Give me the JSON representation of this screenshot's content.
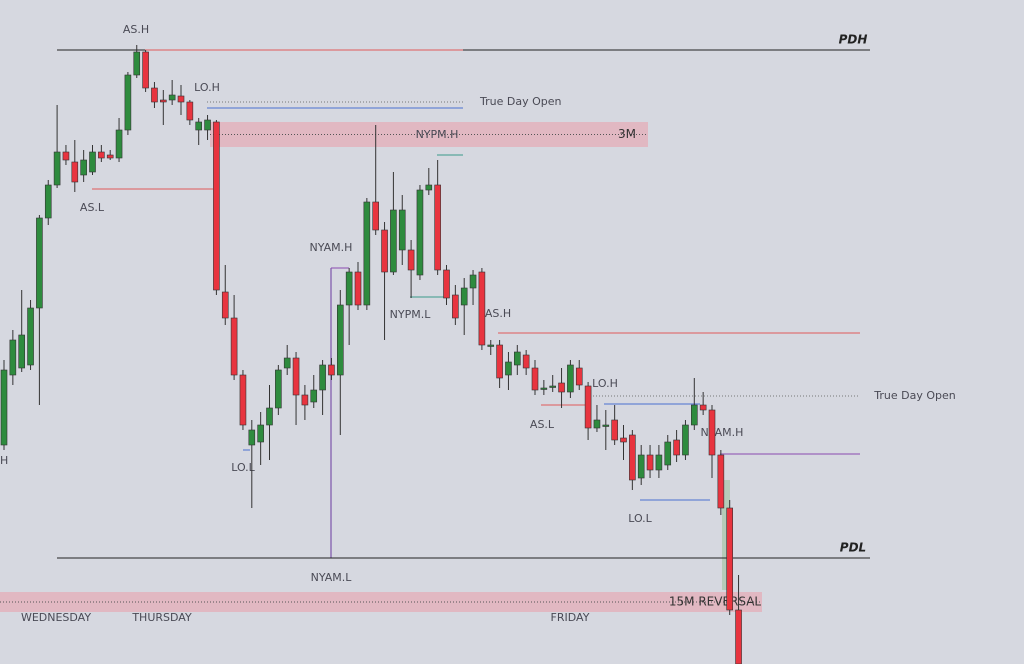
{
  "chart_data": {
    "type": "candlestick",
    "ylim": [
      0,
      664
    ],
    "up_color": "#2e8b3e",
    "down_color": "#e8343f",
    "ohlc": [
      [
        219,
        304,
        214,
        294
      ],
      [
        289,
        334,
        279,
        324
      ],
      [
        296,
        374,
        292,
        329
      ],
      [
        299,
        364,
        294,
        356
      ],
      [
        356,
        449,
        259,
        446
      ],
      [
        446,
        484,
        439,
        479
      ],
      [
        479,
        559,
        476,
        512
      ],
      [
        512,
        519,
        499,
        504
      ],
      [
        502,
        524,
        472,
        482
      ],
      [
        489,
        514,
        482,
        504
      ],
      [
        492,
        519,
        489,
        512
      ],
      [
        512,
        519,
        502,
        506
      ],
      [
        509,
        514,
        504,
        506
      ],
      [
        506,
        546,
        502,
        534
      ],
      [
        534,
        592,
        529,
        589
      ],
      [
        589,
        619,
        586,
        612
      ],
      [
        612,
        614,
        572,
        576
      ],
      [
        576,
        582,
        556,
        562
      ],
      [
        564,
        574,
        539,
        562
      ],
      [
        564,
        584,
        559,
        569
      ],
      [
        568,
        579,
        549,
        562
      ],
      [
        562,
        564,
        539,
        544
      ],
      [
        534,
        546,
        519,
        542
      ],
      [
        534,
        549,
        524,
        544
      ],
      [
        542,
        544,
        369,
        374
      ],
      [
        372,
        399,
        339,
        346
      ],
      [
        346,
        369,
        284,
        289
      ],
      [
        289,
        294,
        234,
        239
      ],
      [
        219,
        244,
        156,
        234
      ],
      [
        222,
        252,
        199,
        239
      ],
      [
        239,
        279,
        204,
        256
      ],
      [
        256,
        299,
        249,
        294
      ],
      [
        296,
        319,
        289,
        306
      ],
      [
        306,
        312,
        239,
        269
      ],
      [
        269,
        279,
        244,
        259
      ],
      [
        262,
        289,
        256,
        274
      ],
      [
        274,
        304,
        249,
        299
      ],
      [
        299,
        306,
        284,
        289
      ],
      [
        289,
        374,
        229,
        359
      ],
      [
        359,
        396,
        319,
        392
      ],
      [
        392,
        402,
        354,
        359
      ],
      [
        359,
        466,
        354,
        462
      ],
      [
        462,
        539,
        429,
        434
      ],
      [
        434,
        442,
        324,
        392
      ],
      [
        392,
        492,
        389,
        454
      ],
      [
        414,
        469,
        399,
        454
      ],
      [
        414,
        424,
        366,
        394
      ],
      [
        389,
        479,
        384,
        474
      ],
      [
        474,
        496,
        469,
        479
      ],
      [
        479,
        504,
        389,
        394
      ],
      [
        394,
        399,
        359,
        366
      ],
      [
        369,
        379,
        339,
        346
      ],
      [
        359,
        386,
        329,
        376
      ],
      [
        376,
        394,
        359,
        389
      ],
      [
        392,
        396,
        314,
        319
      ],
      [
        319,
        324,
        309,
        319
      ],
      [
        319,
        324,
        276,
        286
      ],
      [
        289,
        312,
        274,
        302
      ],
      [
        299,
        319,
        289,
        312
      ],
      [
        309,
        314,
        289,
        296
      ],
      [
        296,
        304,
        269,
        274
      ],
      [
        276,
        284,
        269,
        276
      ],
      [
        278,
        289,
        272,
        278
      ],
      [
        281,
        296,
        256,
        272
      ],
      [
        272,
        304,
        266,
        299
      ],
      [
        296,
        304,
        274,
        279
      ],
      [
        278,
        282,
        224,
        236
      ],
      [
        236,
        259,
        232,
        244
      ],
      [
        239,
        254,
        214,
        239
      ],
      [
        244,
        259,
        219,
        224
      ],
      [
        226,
        239,
        204,
        222
      ],
      [
        229,
        234,
        174,
        184
      ],
      [
        186,
        219,
        179,
        209
      ],
      [
        209,
        219,
        186,
        194
      ],
      [
        194,
        219,
        186,
        209
      ],
      [
        199,
        229,
        194,
        222
      ],
      [
        224,
        234,
        202,
        209
      ],
      [
        209,
        244,
        204,
        239
      ],
      [
        239,
        286,
        234,
        259
      ],
      [
        259,
        272,
        249,
        254
      ],
      [
        254,
        259,
        186,
        209
      ],
      [
        209,
        214,
        149,
        156
      ],
      [
        156,
        164,
        49,
        54
      ],
      [
        54,
        89,
        0,
        0
      ]
    ],
    "levels": [
      {
        "name": "PDH",
        "value": 614,
        "color": "#222222"
      },
      {
        "name": "AS.H",
        "value": 614,
        "color": "#e05a5a"
      },
      {
        "name": "True Day Open",
        "value": 562,
        "color": "#777777"
      },
      {
        "name": "LO.H",
        "value": 556,
        "color": "#4a6fd0"
      },
      {
        "name": "NYPM.H",
        "value": 509,
        "color": "#3a9a8a"
      },
      {
        "name": "AS.L",
        "value": 475,
        "color": "#e05a5a"
      },
      {
        "name": "NYAM.H",
        "value": 396,
        "color": "#8a4ab0"
      },
      {
        "name": "NYPM.L",
        "value": 367,
        "color": "#3a9a8a"
      },
      {
        "name": "LO.L",
        "value": 214,
        "color": "#4a6fd0"
      },
      {
        "name": "NYAM.L",
        "value": 106,
        "color": "#6a3aa0"
      },
      {
        "name": "PDL",
        "value": 106,
        "color": "#222222"
      },
      {
        "name": "AS.H",
        "value": 331,
        "color": "#e05a5a"
      },
      {
        "name": "True Day Open",
        "value": 268,
        "color": "#777777"
      },
      {
        "name": "LO.H",
        "value": 260,
        "color": "#4a6fd0"
      },
      {
        "name": "AS.L",
        "value": 259,
        "color": "#e05a5a"
      },
      {
        "name": "NYAM.H",
        "value": 210,
        "color": "#8a4ab0"
      },
      {
        "name": "LO.L",
        "value": 164,
        "color": "#4a6fd0"
      }
    ],
    "zones": [
      {
        "name": "3M",
        "low": 517,
        "high": 542
      },
      {
        "name": "15M REVERSAL",
        "low": 52,
        "high": 72
      }
    ],
    "edge_label": "H",
    "x_labels": [
      "WEDNESDAY",
      "THURSDAY",
      "FRIDAY"
    ]
  }
}
